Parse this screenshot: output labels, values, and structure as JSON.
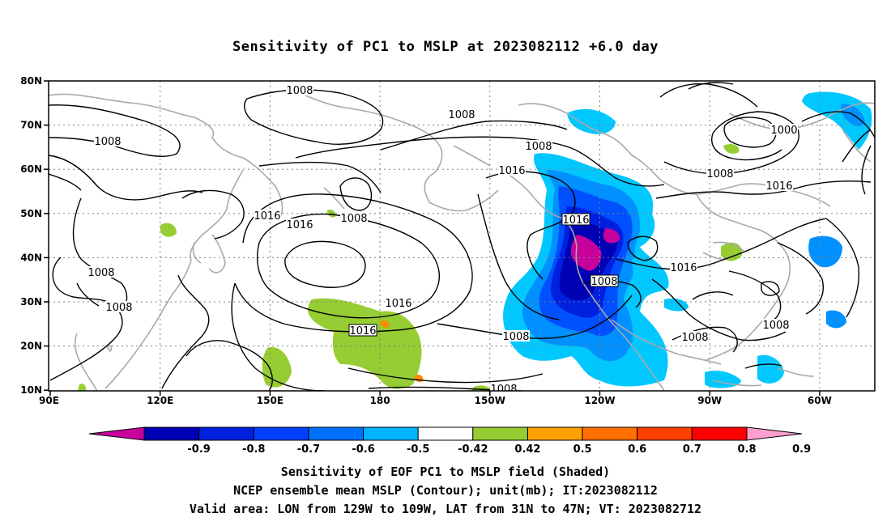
{
  "title": "Sensitivity of PC1 to MSLP at 2023082112 +6.0 day",
  "map": {
    "lon_labels": [
      "90E",
      "120E",
      "150E",
      "180",
      "150W",
      "120W",
      "90W",
      "60W"
    ],
    "lat_labels": [
      "80N",
      "70N",
      "60N",
      "50N",
      "40N",
      "30N",
      "20N",
      "10N"
    ],
    "grid": true,
    "contour_labels": [
      "1008",
      "1008",
      "1008",
      "1008",
      "1008",
      "1008",
      "1008",
      "1008",
      "1008",
      "1008",
      "1008",
      "1000",
      "1016",
      "1016",
      "1016",
      "1016",
      "1016",
      "1016",
      "1016",
      "1016",
      "1008",
      "1008"
    ],
    "colors": {
      "coast": "#a9a9a9",
      "contour": "#000000",
      "neg_light": "#00c8ff",
      "neg_mid": "#0090ff",
      "neg_deep": "#0050ff",
      "neg_darker": "#0020e0",
      "neg_darkest": "#0000b4",
      "neg_extreme": "#c8009c",
      "pos_light": "#96cd32",
      "pos_orange": "#ff8c00"
    }
  },
  "colorbar": {
    "colors": [
      "#c8009c",
      "#0000b4",
      "#0020e0",
      "#0040ff",
      "#0070ff",
      "#00b4ff",
      "#ffffff",
      "#96cd32",
      "#ffa000",
      "#ff7000",
      "#ff4000",
      "#ff0000",
      "#ff9fcf"
    ],
    "labels": [
      "-0.9",
      "-0.8",
      "-0.7",
      "-0.6",
      "-0.5",
      "-0.42",
      "0.42",
      "0.5",
      "0.6",
      "0.7",
      "0.8",
      "0.9"
    ]
  },
  "captions": {
    "line1": "Sensitivity of EOF PC1 to MSLP field (Shaded)",
    "line2": "NCEP ensemble mean MSLP (Contour); unit(mb); IT:2023082112",
    "line3": "Valid area: LON from 129W to 109W, LAT from 31N to 47N; VT: 2023082712"
  }
}
